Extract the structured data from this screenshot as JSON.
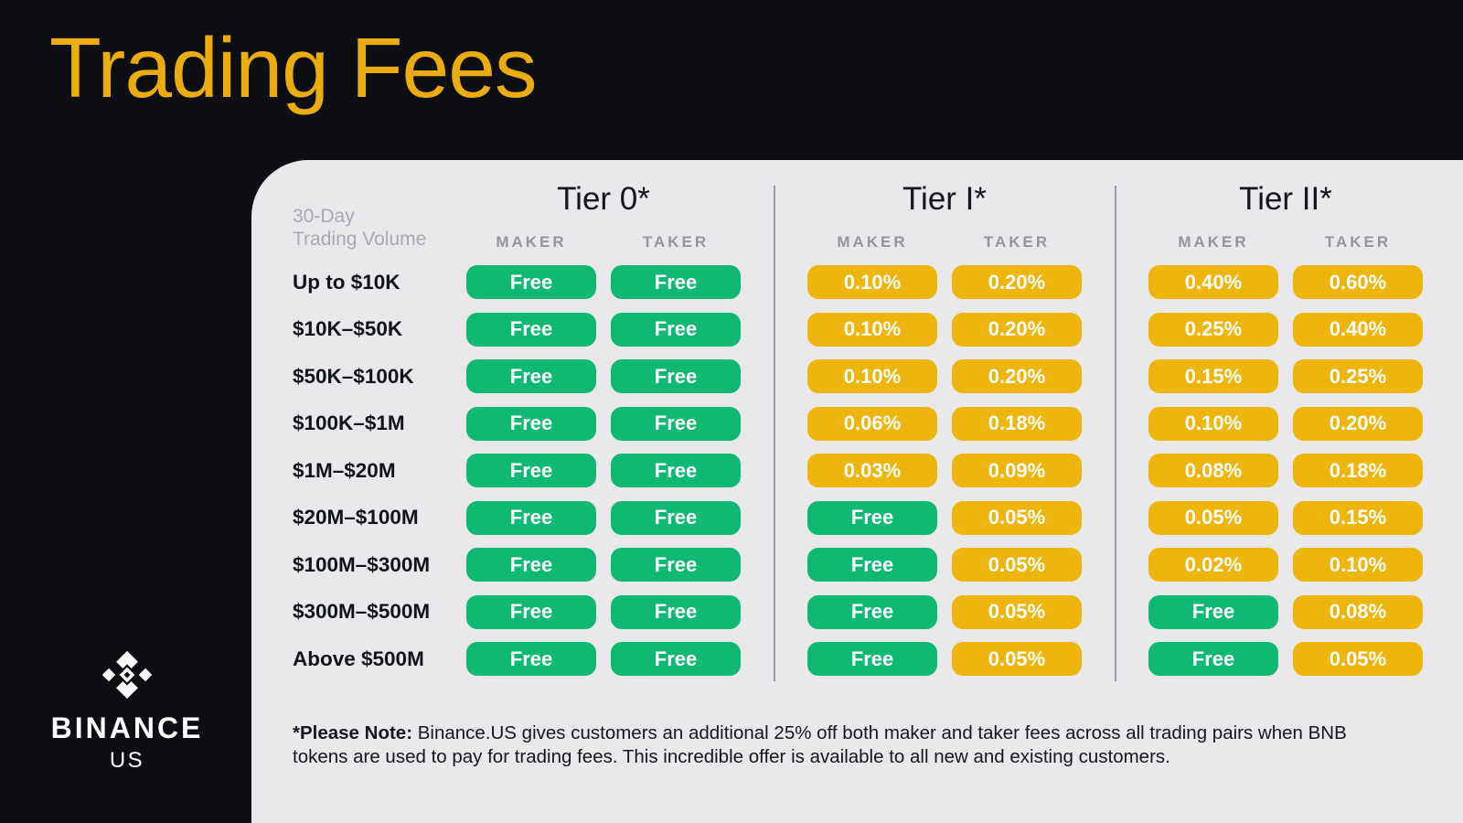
{
  "title": "Trading Fees",
  "brand": {
    "name": "BINANCE",
    "sub": "US"
  },
  "colors": {
    "background": "#0C0E12",
    "accent_gold": "#EAAC0E",
    "panel": "#E9E9EB",
    "pill_green": "#0FB873",
    "pill_yellow": "#EEB50D",
    "divider": "#9A9CA1"
  },
  "table": {
    "volume_header": {
      "line1": "30-Day",
      "line2": "Trading Volume"
    },
    "column_labels": {
      "maker": "MAKER",
      "taker": "TAKER"
    },
    "tiers": [
      {
        "title": "Tier 0*"
      },
      {
        "title": "Tier I*"
      },
      {
        "title": "Tier II*"
      }
    ],
    "rows": [
      {
        "label": "Up to $10K",
        "fees": [
          "Free",
          "Free",
          "0.10%",
          "0.20%",
          "0.40%",
          "0.60%"
        ]
      },
      {
        "label": "$10K–$50K",
        "fees": [
          "Free",
          "Free",
          "0.10%",
          "0.20%",
          "0.25%",
          "0.40%"
        ]
      },
      {
        "label": "$50K–$100K",
        "fees": [
          "Free",
          "Free",
          "0.10%",
          "0.20%",
          "0.15%",
          "0.25%"
        ]
      },
      {
        "label": "$100K–$1M",
        "fees": [
          "Free",
          "Free",
          "0.06%",
          "0.18%",
          "0.10%",
          "0.20%"
        ]
      },
      {
        "label": "$1M–$20M",
        "fees": [
          "Free",
          "Free",
          "0.03%",
          "0.09%",
          "0.08%",
          "0.18%"
        ]
      },
      {
        "label": "$20M–$100M",
        "fees": [
          "Free",
          "Free",
          "Free",
          "0.05%",
          "0.05%",
          "0.15%"
        ]
      },
      {
        "label": "$100M–$300M",
        "fees": [
          "Free",
          "Free",
          "Free",
          "0.05%",
          "0.02%",
          "0.10%"
        ]
      },
      {
        "label": "$300M–$500M",
        "fees": [
          "Free",
          "Free",
          "Free",
          "0.05%",
          "Free",
          "0.08%"
        ]
      },
      {
        "label": "Above $500M",
        "fees": [
          "Free",
          "Free",
          "Free",
          "0.05%",
          "Free",
          "0.05%"
        ]
      }
    ]
  },
  "footnote": {
    "bold": "*Please Note:",
    "text": " Binance.US gives customers an additional 25% off both maker and taker fees across all trading pairs when BNB tokens are used to pay for trading fees. This incredible offer is available to all new and existing customers."
  }
}
